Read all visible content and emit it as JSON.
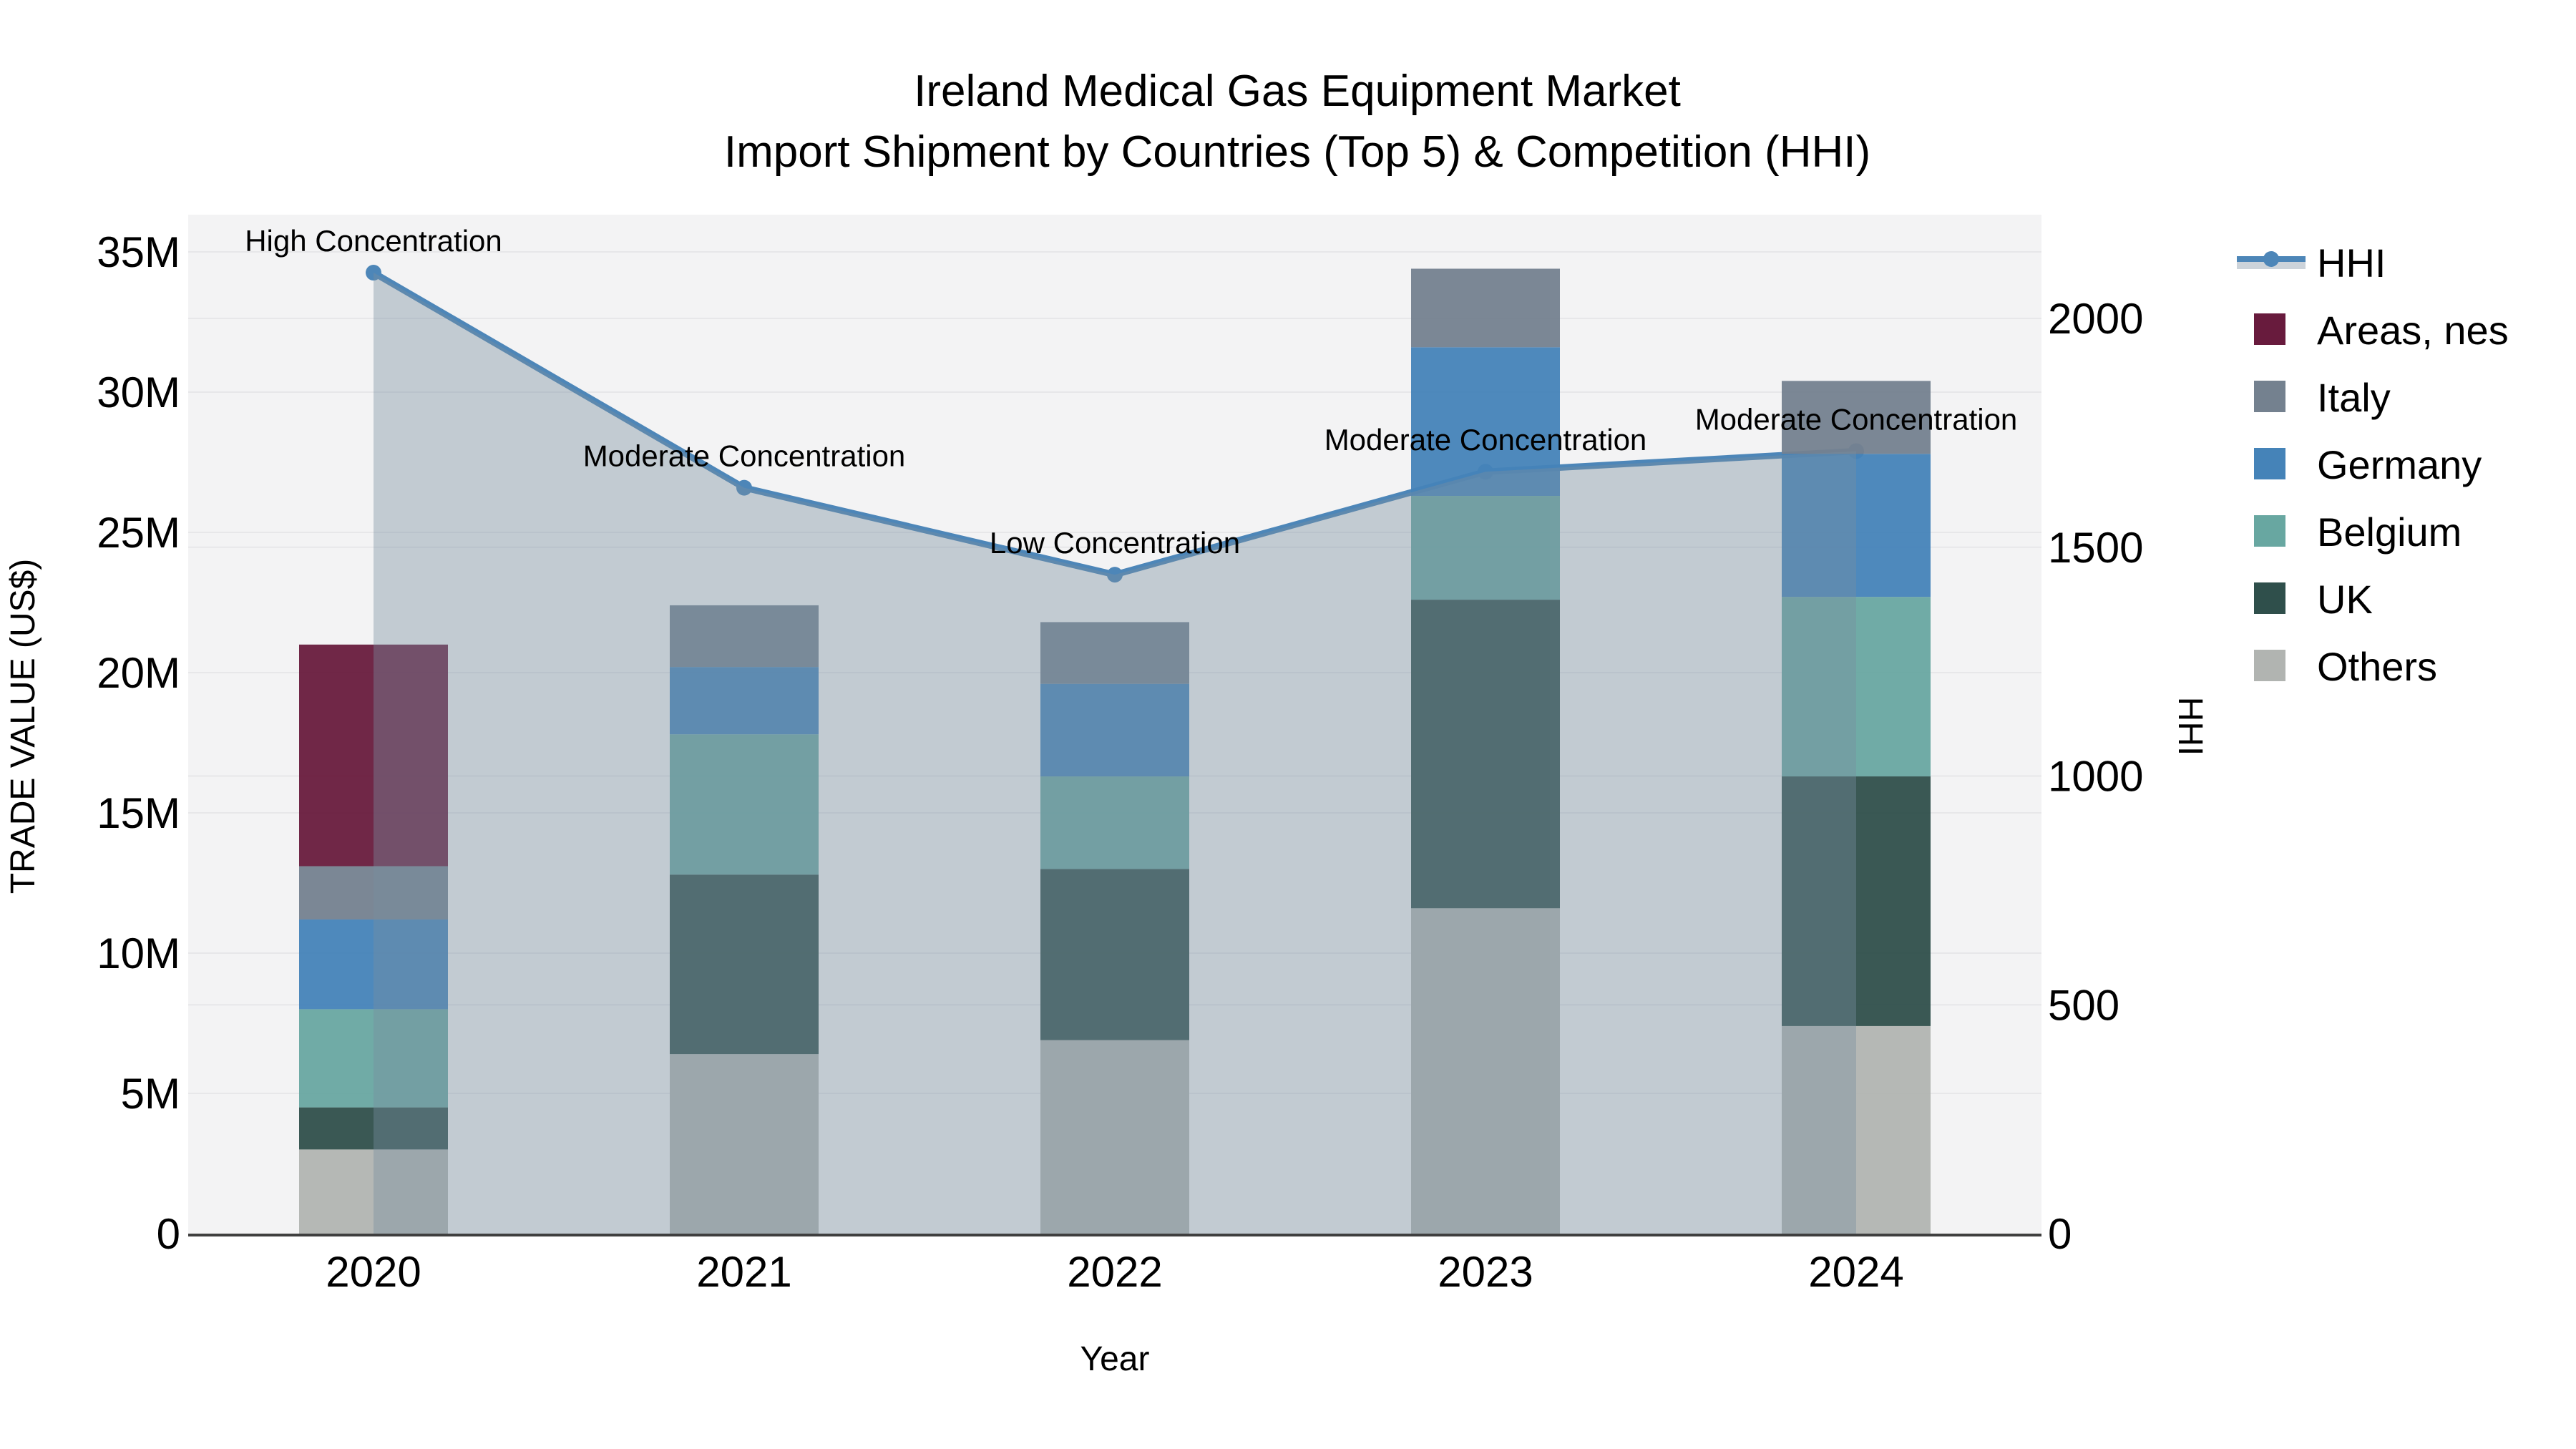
{
  "title": {
    "line1": "Ireland Medical Gas Equipment Market",
    "line2": "Import Shipment by Countries (Top 5) & Competition (HHI)"
  },
  "axes": {
    "x": {
      "title": "Year",
      "tick_labels": [
        "2020",
        "2021",
        "2022",
        "2023",
        "2024"
      ]
    },
    "y_left": {
      "title": "TRADE VALUE (US$)",
      "tick_labels": [
        "0",
        "5M",
        "10M",
        "15M",
        "20M",
        "25M",
        "30M",
        "35M"
      ],
      "tick_values": [
        0,
        5,
        10,
        15,
        20,
        25,
        30,
        35
      ]
    },
    "y_right": {
      "title": "HHI",
      "tick_labels": [
        "0",
        "500",
        "1000",
        "1500",
        "2000"
      ],
      "tick_values": [
        0,
        500,
        1000,
        1500,
        2000
      ]
    }
  },
  "legend": {
    "items": [
      {
        "label": "HHI",
        "type": "line",
        "color": "#4d86b8"
      },
      {
        "label": "Areas, nes",
        "type": "swatch",
        "color": "#681b3d"
      },
      {
        "label": "Italy",
        "type": "swatch",
        "color": "#74818f"
      },
      {
        "label": "Germany",
        "type": "swatch",
        "color": "#4583b8"
      },
      {
        "label": "Belgium",
        "type": "swatch",
        "color": "#68a7a1"
      },
      {
        "label": "UK",
        "type": "swatch",
        "color": "#2f4f4b"
      },
      {
        "label": "Others",
        "type": "swatch",
        "color": "#b1b4b1"
      }
    ]
  },
  "chart_data": {
    "type": "bar",
    "stacked": true,
    "categories": [
      "2020",
      "2021",
      "2022",
      "2023",
      "2024"
    ],
    "value_unit": "USD millions",
    "series": [
      {
        "name": "Areas, nes",
        "values": [
          7.9,
          0,
          0,
          0,
          0
        ]
      },
      {
        "name": "Italy",
        "values": [
          1.9,
          2.2,
          2.2,
          2.8,
          2.6
        ]
      },
      {
        "name": "Germany",
        "values": [
          3.2,
          2.4,
          3.3,
          5.3,
          5.1
        ]
      },
      {
        "name": "Belgium",
        "values": [
          3.5,
          5.0,
          3.3,
          3.7,
          6.4
        ]
      },
      {
        "name": "UK",
        "values": [
          1.5,
          6.4,
          6.1,
          11.0,
          8.9
        ]
      },
      {
        "name": "Others",
        "values": [
          3.0,
          6.4,
          6.9,
          11.6,
          7.4
        ]
      }
    ],
    "stack_order_bottom_to_top": [
      "Others",
      "UK",
      "Belgium",
      "Germany",
      "Italy",
      "Areas, nes"
    ],
    "totals": [
      21.0,
      22.4,
      21.8,
      34.4,
      30.4
    ],
    "line_series": {
      "name": "HHI",
      "axis": "right",
      "values": [
        2100,
        1630,
        1440,
        1665,
        1710
      ],
      "area_fill": true
    },
    "annotations": [
      {
        "category": "2020",
        "text": "High Concentration"
      },
      {
        "category": "2021",
        "text": "Moderate Concentration"
      },
      {
        "category": "2022",
        "text": "Low Concentration"
      },
      {
        "category": "2023",
        "text": "Moderate Concentration"
      },
      {
        "category": "2024",
        "text": "Moderate Concentration"
      }
    ],
    "xlabel": "Year",
    "ylabel_left": "TRADE VALUE (US$)",
    "ylabel_right": "HHI",
    "y_left_range": [
      0,
      36.3
    ],
    "y_right_range": [
      0,
      2227
    ],
    "grid": true,
    "legend_position": "right"
  },
  "colors": {
    "hhi_line": "#4d86b8",
    "hhi_area": "rgba(121,143,160,0.40)",
    "hhi_legend_band": "#ccd3da",
    "plot_background": "#f3f3f4",
    "gridline": "#e7e7e9",
    "axis_line": "#3f3f3f",
    "text": "#000000",
    "series": {
      "Areas, nes": "#681b3d",
      "Italy": "#74818f",
      "Germany": "#4583b8",
      "Belgium": "#68a7a1",
      "UK": "#2f4f4b",
      "Others": "#b1b4b1"
    }
  }
}
